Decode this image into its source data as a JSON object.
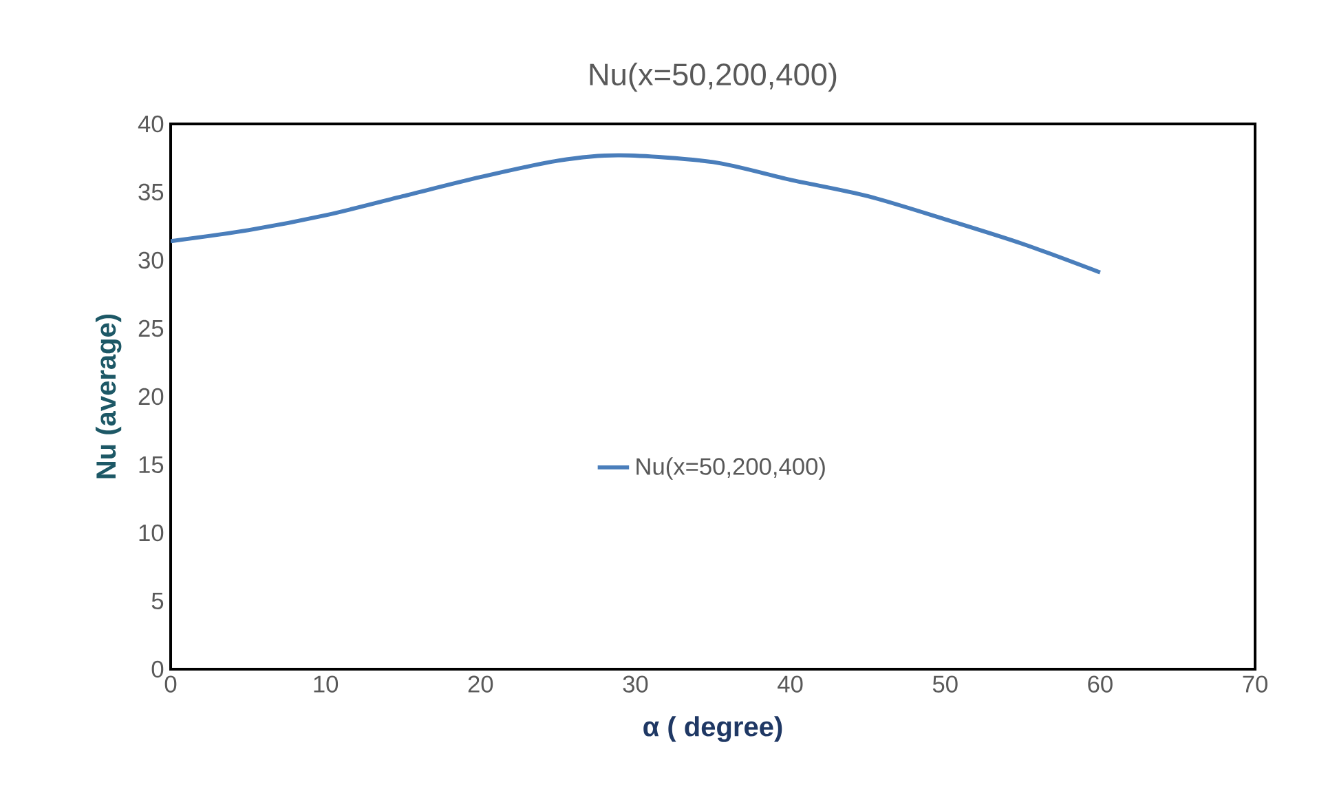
{
  "chart_data": {
    "type": "line",
    "title": "Nu(x=50,200,400)",
    "xlabel": "α ( degree)",
    "ylabel": "Nu (average)",
    "x": [
      0,
      5,
      10,
      15,
      20,
      25,
      29,
      35,
      40,
      45,
      50,
      55,
      60
    ],
    "series": [
      {
        "name": "Nu(x=50,200,400)",
        "color": "#4a7ebb",
        "values": [
          31.4,
          32.2,
          33.3,
          34.7,
          36.1,
          37.3,
          37.7,
          37.2,
          35.9,
          34.7,
          33.0,
          31.2,
          29.1
        ]
      }
    ],
    "xlim": [
      0,
      70
    ],
    "ylim": [
      0,
      40
    ],
    "xticks": [
      0,
      10,
      20,
      30,
      40,
      50,
      60,
      70
    ],
    "yticks": [
      0,
      5,
      10,
      15,
      20,
      25,
      30,
      35,
      40
    ],
    "grid": false,
    "legend": "center",
    "marker": "none",
    "line_style": "solid"
  }
}
